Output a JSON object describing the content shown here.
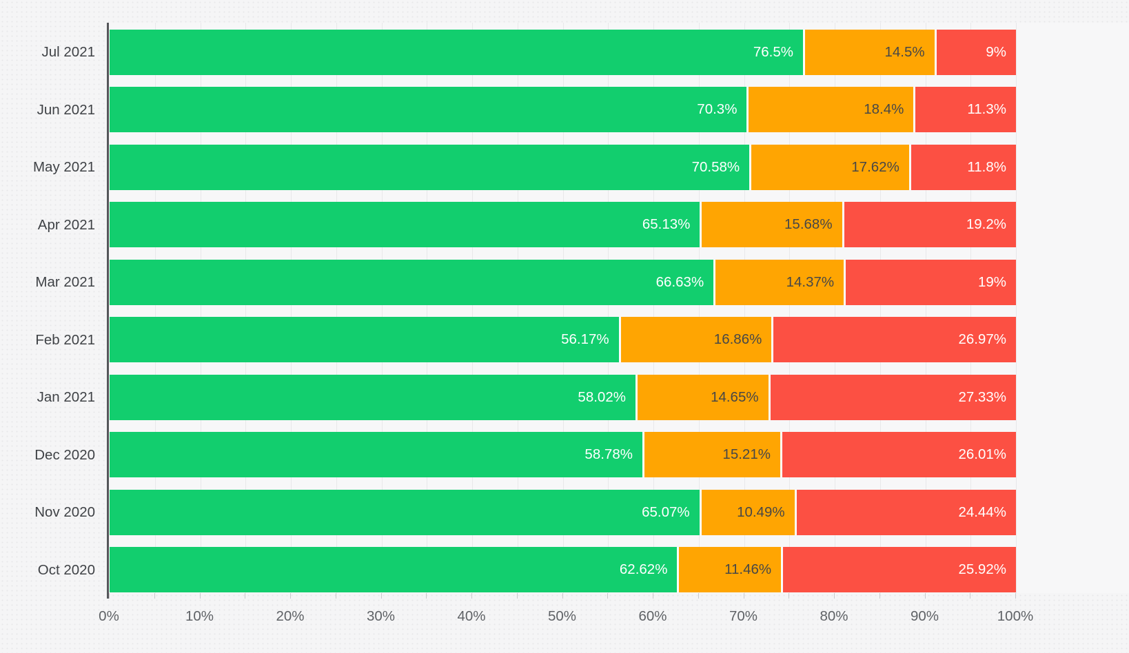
{
  "chart_data": {
    "type": "bar",
    "orientation": "horizontal",
    "stacked": true,
    "title": "",
    "xlabel": "",
    "ylabel": "",
    "xlim": [
      0,
      100
    ],
    "x_tick_labels": [
      "0%",
      "10%",
      "20%",
      "30%",
      "40%",
      "50%",
      "60%",
      "70%",
      "80%",
      "90%",
      "100%"
    ],
    "minor_gridline_step_pct": 5,
    "grid": "vertical minor gridlines every 5%, light gray",
    "legend": "none",
    "categories": [
      "Jul 2021",
      "Jun 2021",
      "May 2021",
      "Apr 2021",
      "Mar 2021",
      "Feb 2021",
      "Jan 2021",
      "Dec 2020",
      "Nov 2020",
      "Oct 2020"
    ],
    "series": [
      {
        "name": "green",
        "color": "#12ce6e",
        "label_color": "#ffffff",
        "values": [
          76.5,
          70.3,
          70.58,
          65.13,
          66.63,
          56.17,
          58.02,
          58.78,
          65.07,
          62.62
        ],
        "labels": [
          "76.5%",
          "70.3%",
          "70.58%",
          "65.13%",
          "66.63%",
          "56.17%",
          "58.02%",
          "58.78%",
          "65.07%",
          "62.62%"
        ]
      },
      {
        "name": "orange",
        "color": "#ffa502",
        "label_color": "#474747",
        "values": [
          14.5,
          18.4,
          17.62,
          15.68,
          14.37,
          16.86,
          14.65,
          15.21,
          10.49,
          11.46
        ],
        "labels": [
          "14.5%",
          "18.4%",
          "17.62%",
          "15.68%",
          "14.37%",
          "16.86%",
          "14.65%",
          "15.21%",
          "10.49%",
          "11.46%"
        ]
      },
      {
        "name": "red",
        "color": "#fc5043",
        "label_color": "#ffffff",
        "values": [
          9,
          11.3,
          11.8,
          19.2,
          19,
          26.97,
          27.33,
          26.01,
          24.44,
          25.92
        ],
        "labels": [
          "9%",
          "11.3%",
          "11.8%",
          "19.2%",
          "19%",
          "26.97%",
          "27.33%",
          "26.01%",
          "24.44%",
          "25.92%"
        ]
      }
    ]
  },
  "style": {
    "page_background": "#f5f5f6",
    "plot_background": "#f7f7f8",
    "axis_line_color": "#55565a",
    "gridline_color": "#e8e8ea",
    "tick_color": "#c9c9cc",
    "category_label_color": "#3f4246",
    "axis_label_color": "#5f6266",
    "segment_separator_color": "#fbfbfc"
  }
}
